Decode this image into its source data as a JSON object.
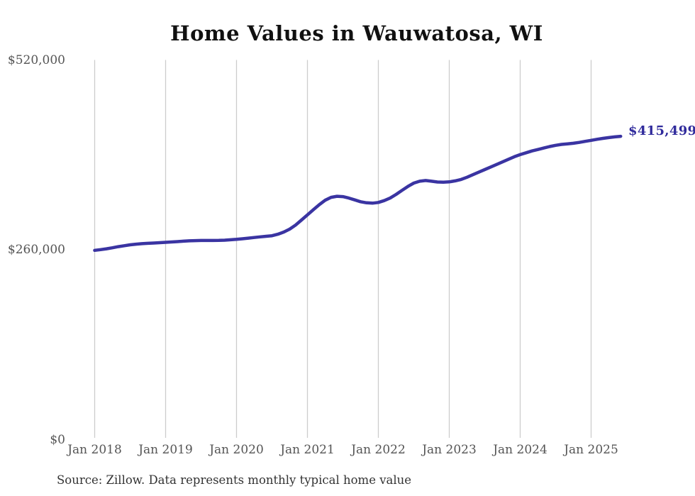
{
  "title": "Home Values in Wauwatosa, WI",
  "end_label": "$415,499",
  "source_note": "Source: Zillow. Data represents monthly typical home value",
  "colors": {
    "line": "#3a34a2",
    "end_label_text": "#302b9c",
    "grid": "#cccccc",
    "axis_text": "#555555",
    "title_text": "#111111",
    "source_text": "#333333",
    "background": "#ffffff"
  },
  "y_axis": {
    "ticks": [
      {
        "label": "$520,000",
        "value": 520000
      },
      {
        "label": "$260,000",
        "value": 260000
      },
      {
        "label": "$0",
        "value": 0
      }
    ]
  },
  "x_axis": {
    "ticks": [
      {
        "label": "Jan 2018",
        "month_index": 0
      },
      {
        "label": "Jan 2019",
        "month_index": 12
      },
      {
        "label": "Jan 2020",
        "month_index": 24
      },
      {
        "label": "Jan 2021",
        "month_index": 36
      },
      {
        "label": "Jan 2022",
        "month_index": 48
      },
      {
        "label": "Jan 2023",
        "month_index": 60
      },
      {
        "label": "Jan 2024",
        "month_index": 72
      },
      {
        "label": "Jan 2025",
        "month_index": 84
      }
    ]
  },
  "chart_data": {
    "type": "line",
    "title": "Home Values in Wauwatosa, WI",
    "xlabel": "",
    "ylabel": "",
    "ylim": [
      0,
      520000
    ],
    "grid": "vertical-only",
    "legend": "none",
    "latest_value": 415499,
    "latest_value_label": "$415,499",
    "x": [
      "2018-01",
      "2018-02",
      "2018-03",
      "2018-04",
      "2018-05",
      "2018-06",
      "2018-07",
      "2018-08",
      "2018-09",
      "2018-10",
      "2018-11",
      "2018-12",
      "2019-01",
      "2019-02",
      "2019-03",
      "2019-04",
      "2019-05",
      "2019-06",
      "2019-07",
      "2019-08",
      "2019-09",
      "2019-10",
      "2019-11",
      "2019-12",
      "2020-01",
      "2020-02",
      "2020-03",
      "2020-04",
      "2020-05",
      "2020-06",
      "2020-07",
      "2020-08",
      "2020-09",
      "2020-10",
      "2020-11",
      "2020-12",
      "2021-01",
      "2021-02",
      "2021-03",
      "2021-04",
      "2021-05",
      "2021-06",
      "2021-07",
      "2021-08",
      "2021-09",
      "2021-10",
      "2021-11",
      "2021-12",
      "2022-01",
      "2022-02",
      "2022-03",
      "2022-04",
      "2022-05",
      "2022-06",
      "2022-07",
      "2022-08",
      "2022-09",
      "2022-10",
      "2022-11",
      "2022-12",
      "2023-01",
      "2023-02",
      "2023-03",
      "2023-04",
      "2023-05",
      "2023-06",
      "2023-07",
      "2023-08",
      "2023-09",
      "2023-10",
      "2023-11",
      "2023-12",
      "2024-01",
      "2024-02",
      "2024-03",
      "2024-04",
      "2024-05",
      "2024-06",
      "2024-07",
      "2024-08",
      "2024-09",
      "2024-10",
      "2024-11",
      "2024-12",
      "2025-01",
      "2025-02",
      "2025-03",
      "2025-04",
      "2025-05",
      "2025-06"
    ],
    "values": [
      259500,
      260400,
      261600,
      263000,
      264500,
      265800,
      267000,
      267900,
      268600,
      269100,
      269500,
      270000,
      270400,
      270900,
      271400,
      272000,
      272500,
      272800,
      273000,
      273000,
      273000,
      273100,
      273400,
      273900,
      274500,
      275300,
      276200,
      277000,
      277900,
      278700,
      279500,
      281500,
      284500,
      288500,
      294000,
      301000,
      308000,
      315000,
      322000,
      328000,
      332000,
      333500,
      333000,
      331000,
      328500,
      326000,
      324500,
      324000,
      325000,
      327500,
      331000,
      336000,
      341500,
      347000,
      351500,
      354000,
      355000,
      354000,
      353000,
      352800,
      353200,
      354500,
      356500,
      359500,
      363000,
      366500,
      370000,
      373500,
      377000,
      380500,
      384000,
      387500,
      390500,
      393000,
      395500,
      397500,
      399500,
      401500,
      403200,
      404400,
      405200,
      406000,
      407200,
      408600,
      410000,
      411400,
      412700,
      413800,
      414700,
      415499
    ]
  }
}
